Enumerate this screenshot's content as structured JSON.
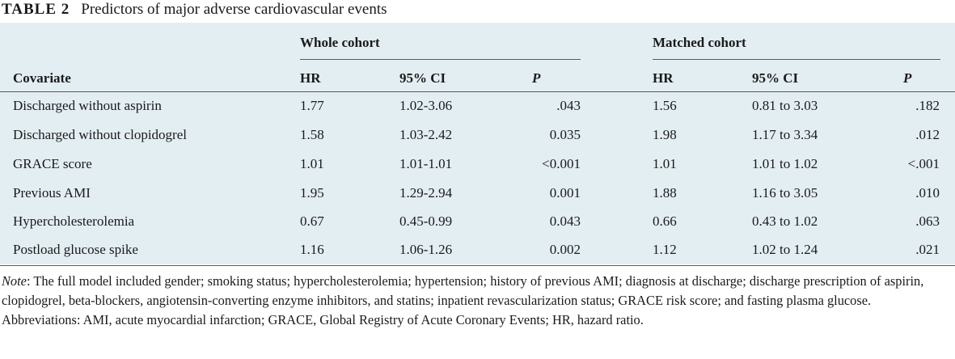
{
  "caption": {
    "label": "TABLE 2",
    "title": "Predictors of major adverse cardiovascular events"
  },
  "groups": {
    "whole": "Whole cohort",
    "matched": "Matched cohort"
  },
  "columns": {
    "covariate": "Covariate",
    "hr1": "HR",
    "ci1": "95% CI",
    "p1": "P",
    "hr2": "HR",
    "ci2": "95% CI",
    "p2": "P"
  },
  "rows": [
    {
      "covariate": "Discharged without aspirin",
      "hr1": "1.77",
      "ci1": "1.02-3.06",
      "p1": ".043",
      "hr2": "1.56",
      "ci2": "0.81 to 3.03",
      "p2": ".182"
    },
    {
      "covariate": "Discharged without clopidogrel",
      "hr1": "1.58",
      "ci1": "1.03-2.42",
      "p1": "0.035",
      "hr2": "1.98",
      "ci2": "1.17 to 3.34",
      "p2": ".012"
    },
    {
      "covariate": "GRACE score",
      "hr1": "1.01",
      "ci1": "1.01-1.01",
      "p1": "<0.001",
      "hr2": "1.01",
      "ci2": "1.01 to 1.02",
      "p2": "<.001"
    },
    {
      "covariate": "Previous AMI",
      "hr1": "1.95",
      "ci1": "1.29-2.94",
      "p1": "0.001",
      "hr2": "1.88",
      "ci2": "1.16 to 3.05",
      "p2": ".010"
    },
    {
      "covariate": "Hypercholesterolemia",
      "hr1": "0.67",
      "ci1": "0.45-0.99",
      "p1": "0.043",
      "hr2": "0.66",
      "ci2": "0.43 to 1.02",
      "p2": ".063"
    },
    {
      "covariate": "Postload glucose spike",
      "hr1": "1.16",
      "ci1": "1.06-1.26",
      "p1": "0.002",
      "hr2": "1.12",
      "ci2": "1.02 to 1.24",
      "p2": ".021"
    }
  ],
  "note": {
    "label": "Note",
    "text": ": The full model included gender; smoking status; hypercholesterolemia; hypertension; history of previous AMI; diagnosis at discharge; discharge prescription of aspirin, clopidogrel, beta-blockers, angiotensin-converting enzyme inhibitors, and statins; inpatient revascularization status; GRACE risk score; and fasting plasma glucose.",
    "abbreviations": "Abbreviations: AMI, acute myocardial infarction; GRACE, Global Registry of Acute Coronary Events; HR, hazard ratio."
  }
}
